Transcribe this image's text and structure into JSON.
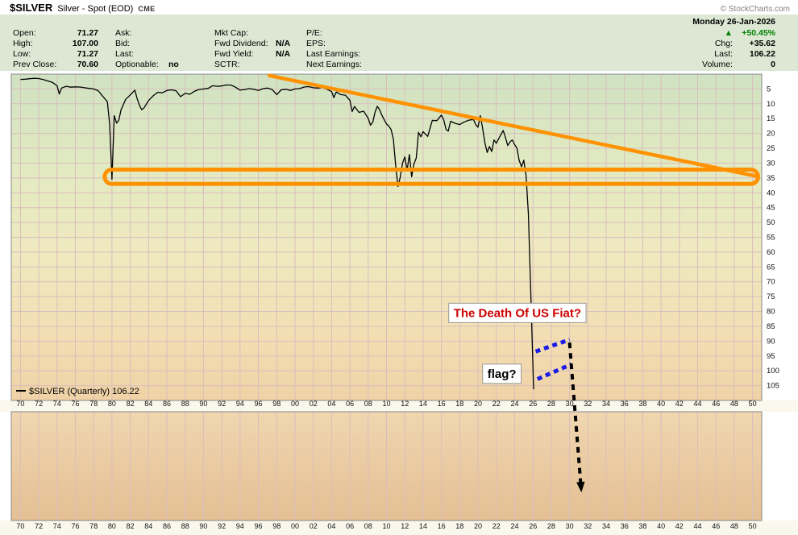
{
  "header": {
    "symbol": "$SILVER",
    "description": "Silver - Spot (EOD)",
    "exchange": "CME",
    "copyright": "© StockCharts.com",
    "date": "Monday 26-Jan-2026"
  },
  "colors": {
    "gain_green": "#008000"
  },
  "quote": {
    "col1": [
      {
        "label": "Open:",
        "value": "71.27"
      },
      {
        "label": "High:",
        "value": "107.00"
      },
      {
        "label": "Low:",
        "value": "71.27"
      },
      {
        "label": "Prev Close:",
        "value": "70.60"
      }
    ],
    "col2": [
      {
        "label": "Ask:",
        "value": ""
      },
      {
        "label": "Bid:",
        "value": ""
      },
      {
        "label": "Last:",
        "value": ""
      },
      {
        "label": "Optionable:",
        "value": "no"
      }
    ],
    "col3": [
      {
        "label": "Mkt Cap:",
        "value": ""
      },
      {
        "label": "Fwd Dividend:",
        "value": "N/A"
      },
      {
        "label": "Fwd Yield:",
        "value": "N/A"
      },
      {
        "label": "SCTR:",
        "value": ""
      }
    ],
    "col4": [
      {
        "label": "P/E:",
        "value": ""
      },
      {
        "label": "EPS:",
        "value": ""
      },
      {
        "label": "Last Earnings:",
        "value": ""
      },
      {
        "label": "Next Earnings:",
        "value": ""
      }
    ],
    "col5": [
      {
        "label": "",
        "arrow": "▲",
        "value": "+50.45%"
      },
      {
        "label": "Chg:",
        "value": "+35.62"
      },
      {
        "label": "Last:",
        "value": "106.22"
      },
      {
        "label": "Volume:",
        "value": "0"
      }
    ]
  },
  "chart_data": {
    "type": "line",
    "title": "$SILVER (Quarterly)",
    "legend_text": "$SILVER (Quarterly) 106.22",
    "last_value": 106.22,
    "y_axis_inverted": true,
    "x_domain": [
      1969,
      2051
    ],
    "y_domain": [
      0,
      110
    ],
    "y_ticks": [
      5,
      10,
      15,
      20,
      25,
      30,
      35,
      40,
      45,
      50,
      55,
      60,
      65,
      70,
      75,
      80,
      85,
      90,
      95,
      100,
      105
    ],
    "x_tick_start_year": 1970,
    "x_tick_step": 2,
    "x_tick_labels": [
      "70",
      "72",
      "74",
      "76",
      "78",
      "80",
      "82",
      "84",
      "86",
      "88",
      "90",
      "92",
      "94",
      "96",
      "98",
      "00",
      "02",
      "04",
      "06",
      "08",
      "10",
      "12",
      "14",
      "16",
      "18",
      "20",
      "22",
      "24",
      "26",
      "28",
      "30",
      "32",
      "34",
      "36",
      "38",
      "40",
      "42",
      "44",
      "46",
      "48",
      "50"
    ],
    "series": [
      {
        "name": "$SILVER",
        "color": "#000000",
        "points": [
          [
            1970,
            1.8
          ],
          [
            1970.5,
            1.7
          ],
          [
            1971,
            1.55
          ],
          [
            1971.5,
            1.4
          ],
          [
            1972,
            1.5
          ],
          [
            1972.5,
            1.85
          ],
          [
            1973,
            2.3
          ],
          [
            1973.5,
            2.8
          ],
          [
            1974,
            3.9
          ],
          [
            1974.25,
            6.7
          ],
          [
            1974.5,
            4.7
          ],
          [
            1975,
            4.1
          ],
          [
            1975.5,
            4.4
          ],
          [
            1976,
            4.3
          ],
          [
            1976.5,
            4.35
          ],
          [
            1977,
            4.6
          ],
          [
            1977.5,
            4.8
          ],
          [
            1978,
            5.0
          ],
          [
            1978.5,
            5.6
          ],
          [
            1979,
            7.5
          ],
          [
            1979.5,
            9.3
          ],
          [
            1979.75,
            17.0
          ],
          [
            1980,
            35.5
          ],
          [
            1980.25,
            14.0
          ],
          [
            1980.5,
            16.5
          ],
          [
            1980.75,
            15.5
          ],
          [
            1981,
            12.0
          ],
          [
            1981.5,
            8.5
          ],
          [
            1982,
            7.0
          ],
          [
            1982.5,
            5.4
          ],
          [
            1982.75,
            8.2
          ],
          [
            1983,
            10.5
          ],
          [
            1983.25,
            12.0
          ],
          [
            1983.5,
            11.4
          ],
          [
            1984,
            8.9
          ],
          [
            1984.5,
            7.3
          ],
          [
            1985,
            6.1
          ],
          [
            1985.5,
            6.3
          ],
          [
            1986,
            5.5
          ],
          [
            1986.5,
            5.3
          ],
          [
            1987,
            5.6
          ],
          [
            1987.5,
            7.6
          ],
          [
            1988,
            6.5
          ],
          [
            1988.5,
            6.8
          ],
          [
            1989,
            5.8
          ],
          [
            1989.5,
            5.2
          ],
          [
            1990,
            5.0
          ],
          [
            1990.5,
            4.8
          ],
          [
            1991,
            3.9
          ],
          [
            1991.5,
            4.1
          ],
          [
            1992,
            4.0
          ],
          [
            1992.5,
            3.65
          ],
          [
            1993,
            3.7
          ],
          [
            1993.5,
            4.4
          ],
          [
            1994,
            5.4
          ],
          [
            1994.5,
            5.2
          ],
          [
            1995,
            4.9
          ],
          [
            1995.5,
            5.1
          ],
          [
            1996,
            5.5
          ],
          [
            1996.5,
            4.9
          ],
          [
            1997,
            4.7
          ],
          [
            1997.5,
            5.2
          ],
          [
            1998,
            6.9
          ],
          [
            1998.5,
            5.3
          ],
          [
            1999,
            5.1
          ],
          [
            1999.5,
            5.5
          ],
          [
            2000,
            5.0
          ],
          [
            2000.5,
            4.9
          ],
          [
            2001,
            4.35
          ],
          [
            2001.5,
            4.2
          ],
          [
            2002,
            4.6
          ],
          [
            2002.5,
            4.7
          ],
          [
            2003,
            4.5
          ],
          [
            2003.5,
            5.1
          ],
          [
            2004,
            5.9
          ],
          [
            2004.25,
            7.9
          ],
          [
            2004.5,
            6.0
          ],
          [
            2005,
            6.9
          ],
          [
            2005.5,
            7.1
          ],
          [
            2006,
            8.8
          ],
          [
            2006.25,
            12.6
          ],
          [
            2006.5,
            10.9
          ],
          [
            2007,
            12.9
          ],
          [
            2007.5,
            12.5
          ],
          [
            2008,
            14.9
          ],
          [
            2008.25,
            17.2
          ],
          [
            2008.5,
            16.2
          ],
          [
            2008.75,
            12.8
          ],
          [
            2009,
            10.8
          ],
          [
            2009.25,
            12.1
          ],
          [
            2009.5,
            13.9
          ],
          [
            2010,
            16.8
          ],
          [
            2010.25,
            17.5
          ],
          [
            2010.5,
            18.7
          ],
          [
            2010.75,
            21.9
          ],
          [
            2011,
            30.9
          ],
          [
            2011.25,
            37.9
          ],
          [
            2011.5,
            34.8
          ],
          [
            2011.75,
            30.0
          ],
          [
            2012,
            27.9
          ],
          [
            2012.25,
            32.4
          ],
          [
            2012.5,
            27.1
          ],
          [
            2012.75,
            34.6
          ],
          [
            2013,
            30.2
          ],
          [
            2013.25,
            28.3
          ],
          [
            2013.5,
            19.6
          ],
          [
            2013.75,
            21.1
          ],
          [
            2014,
            19.4
          ],
          [
            2014.5,
            21.0
          ],
          [
            2015,
            15.6
          ],
          [
            2015.5,
            15.7
          ],
          [
            2016,
            13.8
          ],
          [
            2016.25,
            15.4
          ],
          [
            2016.5,
            18.6
          ],
          [
            2016.75,
            19.2
          ],
          [
            2017,
            15.9
          ],
          [
            2017.5,
            16.6
          ],
          [
            2018,
            17.0
          ],
          [
            2018.5,
            16.1
          ],
          [
            2019,
            15.5
          ],
          [
            2019.5,
            15.3
          ],
          [
            2019.75,
            17.0
          ],
          [
            2020,
            17.9
          ],
          [
            2020.25,
            14.0
          ],
          [
            2020.5,
            18.2
          ],
          [
            2020.75,
            23.2
          ],
          [
            2021,
            26.4
          ],
          [
            2021.25,
            24.4
          ],
          [
            2021.5,
            26.1
          ],
          [
            2021.75,
            22.2
          ],
          [
            2022,
            23.3
          ],
          [
            2022.5,
            20.4
          ],
          [
            2022.75,
            19.0
          ],
          [
            2023,
            21.4
          ],
          [
            2023.25,
            24.1
          ],
          [
            2023.5,
            22.8
          ],
          [
            2023.75,
            22.2
          ],
          [
            2024,
            23.8
          ],
          [
            2024.25,
            24.9
          ],
          [
            2024.5,
            29.1
          ],
          [
            2024.75,
            31.2
          ],
          [
            2025,
            29.0
          ],
          [
            2025.25,
            34.1
          ],
          [
            2025.5,
            47.0
          ],
          [
            2025.75,
            72.0
          ],
          [
            2026.07,
            106.22
          ]
        ]
      }
    ],
    "volume_series": [],
    "annotations": {
      "trendline": {
        "x1": 1997.2,
        "v1": 0.5,
        "x2": 2050.6,
        "v2": 34.5
      },
      "oval": {
        "x1": 1979.2,
        "x2": 2050.6,
        "v1": 32.2,
        "v2": 37.0
      },
      "flag_lines": [
        {
          "x1": 2026.3,
          "v1": 93.5,
          "x2": 2030.0,
          "v2": 89.5
        },
        {
          "x1": 2026.5,
          "v1": 102.8,
          "x2": 2030.2,
          "v2": 97.8
        }
      ],
      "arrow": {
        "x1": 2030.0,
        "v1": 90.5,
        "x2": 2031.3,
        "v2": 141.0
      },
      "death_label": {
        "text": "The Death Of US Fiat?",
        "x": 2016.8,
        "v": 80.5,
        "color": "#cc0000",
        "font_size": 15
      },
      "flag_label": {
        "text": "flag?",
        "x": 2020.5,
        "v": 101.0,
        "color": "#000000",
        "font_size": 15
      }
    },
    "colors": {
      "grid": "#d9bebe",
      "border": "#888888",
      "strip_bg": "#faf7ec",
      "annotation_orange": "#ff9200",
      "flag_blue": "#1c1ce8",
      "arrow_black": "#000000",
      "label_text": "#111111",
      "main_gradient": [
        [
          0,
          "#cfe2c2"
        ],
        [
          0.3,
          "#e3eac1"
        ],
        [
          0.55,
          "#efe9bf"
        ],
        [
          0.78,
          "#f3dfb4"
        ],
        [
          1,
          "#f0d2a6"
        ]
      ],
      "volume_gradient": [
        [
          0,
          "#f0d6b0"
        ],
        [
          1,
          "#e4bf94"
        ]
      ]
    }
  }
}
